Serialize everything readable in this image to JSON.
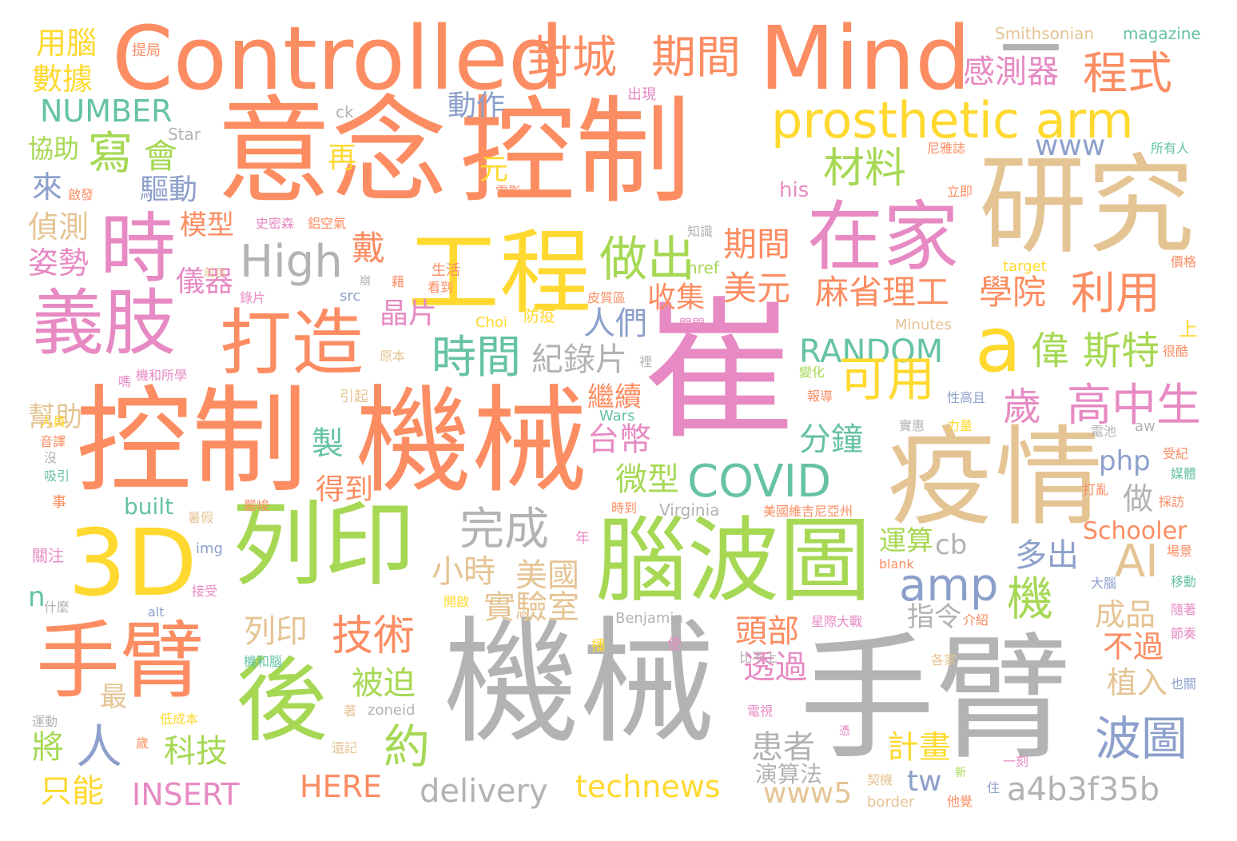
{
  "colors": {
    "orange": "#fc8d62",
    "gray": "#b3b3b3",
    "pink": "#e78ac3",
    "green": "#a6d854",
    "tan": "#e5c494",
    "teal": "#66c2a5",
    "blue": "#8da0cb",
    "yellow": "#ffd92f"
  },
  "words": [
    {
      "text": "機械",
      "color": "gray"
    },
    {
      "text": "手臂",
      "color": "gray"
    },
    {
      "text": "崔",
      "color": "pink"
    },
    {
      "text": "意念",
      "color": "orange"
    },
    {
      "text": "控制",
      "color": "orange"
    },
    {
      "text": "控制",
      "color": "orange"
    },
    {
      "text": "機械",
      "color": "orange"
    },
    {
      "text": "Controlled",
      "color": "orange"
    },
    {
      "text": "Mind",
      "color": "orange"
    },
    {
      "text": "研究",
      "color": "tan"
    },
    {
      "text": "疫情",
      "color": "tan"
    },
    {
      "text": "工程",
      "color": "yellow"
    },
    {
      "text": "3D",
      "color": "yellow"
    },
    {
      "text": "列印",
      "color": "green"
    },
    {
      "text": "腦波圖",
      "color": "green"
    },
    {
      "text": "手臂",
      "color": "orange"
    },
    {
      "text": "後",
      "color": "green"
    },
    {
      "text": "義肢",
      "color": "pink"
    },
    {
      "text": "打造",
      "color": "orange"
    },
    {
      "text": "時",
      "color": "pink"
    },
    {
      "text": "在家",
      "color": "pink"
    },
    {
      "text": "a",
      "color": "yellow"
    },
    {
      "text": "prosthetic arm",
      "color": "yellow"
    },
    {
      "text": "封城",
      "color": "orange"
    },
    {
      "text": "期間",
      "color": "orange"
    },
    {
      "text": "程式",
      "color": "orange"
    },
    {
      "text": "做出",
      "color": "green"
    },
    {
      "text": "High",
      "color": "gray"
    },
    {
      "text": "材料",
      "color": "green"
    },
    {
      "text": "時間",
      "color": "teal"
    },
    {
      "text": "COVID",
      "color": "teal"
    },
    {
      "text": "amp",
      "color": "blue"
    },
    {
      "text": "麻省理工",
      "color": "orange"
    },
    {
      "text": "學院",
      "color": "orange"
    },
    {
      "text": "利用",
      "color": "orange"
    },
    {
      "text": "高中生",
      "color": "pink"
    },
    {
      "text": "歲",
      "color": "pink"
    },
    {
      "text": "偉",
      "color": "green"
    },
    {
      "text": "斯特",
      "color": "green"
    },
    {
      "text": "技術",
      "color": "orange"
    },
    {
      "text": "完成",
      "color": "gray"
    },
    {
      "text": "約",
      "color": "green"
    },
    {
      "text": "人",
      "color": "blue"
    },
    {
      "text": "波圖",
      "color": "blue"
    },
    {
      "text": "AI",
      "color": "tan"
    },
    {
      "text": "機",
      "color": "green"
    },
    {
      "text": "RANDOM",
      "color": "teal"
    },
    {
      "text": "可用",
      "color": "yellow"
    },
    {
      "text": "美元",
      "color": "orange"
    },
    {
      "text": "期間",
      "color": "orange"
    },
    {
      "text": "感測器",
      "color": "pink"
    },
    {
      "text": "NUMBER",
      "color": "teal"
    },
    {
      "text": "寫",
      "color": "green"
    },
    {
      "text": "會",
      "color": "green"
    },
    {
      "text": "動作",
      "color": "blue"
    },
    {
      "text": "數據",
      "color": "yellow"
    },
    {
      "text": "用腦",
      "color": "yellow"
    },
    {
      "text": "www",
      "color": "blue"
    },
    {
      "text": "戴",
      "color": "orange"
    },
    {
      "text": "收集",
      "color": "orange"
    },
    {
      "text": "晶片",
      "color": "pink"
    },
    {
      "text": "人們",
      "color": "blue"
    },
    {
      "text": "紀錄片",
      "color": "gray"
    },
    {
      "text": "分鐘",
      "color": "teal"
    },
    {
      "text": "台幣",
      "color": "pink"
    },
    {
      "text": "微型",
      "color": "green"
    },
    {
      "text": "小時",
      "color": "tan"
    },
    {
      "text": "美國",
      "color": "tan"
    },
    {
      "text": "實驗室",
      "color": "tan"
    },
    {
      "text": "列印",
      "color": "tan"
    },
    {
      "text": "頭部",
      "color": "orange"
    },
    {
      "text": "透過",
      "color": "pink"
    },
    {
      "text": "被迫",
      "color": "green"
    },
    {
      "text": "科技",
      "color": "green"
    },
    {
      "text": "將",
      "color": "green"
    },
    {
      "text": "只能",
      "color": "yellow"
    },
    {
      "text": "INSERT",
      "color": "pink"
    },
    {
      "text": "HERE",
      "color": "orange"
    },
    {
      "text": "delivery",
      "color": "gray"
    },
    {
      "text": "technews",
      "color": "yellow"
    },
    {
      "text": "tw",
      "color": "blue"
    },
    {
      "text": "www5",
      "color": "tan"
    },
    {
      "text": "a4b3f35b",
      "color": "gray"
    },
    {
      "text": "患者",
      "color": "gray"
    },
    {
      "text": "演算法",
      "color": "gray"
    },
    {
      "text": "計畫",
      "color": "yellow"
    },
    {
      "text": "植入",
      "color": "tan"
    },
    {
      "text": "不過",
      "color": "orange"
    },
    {
      "text": "成品",
      "color": "tan"
    },
    {
      "text": "做",
      "color": "gray"
    },
    {
      "text": "多出",
      "color": "blue"
    },
    {
      "text": "運算",
      "color": "green"
    },
    {
      "text": "cb",
      "color": "gray"
    },
    {
      "text": "php",
      "color": "blue"
    },
    {
      "text": "Schooler",
      "color": "orange"
    },
    {
      "text": "指令",
      "color": "gray"
    },
    {
      "text": "繼續",
      "color": "orange"
    },
    {
      "text": "得到",
      "color": "orange"
    },
    {
      "text": "製",
      "color": "teal"
    },
    {
      "text": "元",
      "color": "yellow"
    },
    {
      "text": "再",
      "color": "yellow"
    },
    {
      "text": "儀器",
      "color": "pink"
    },
    {
      "text": "模型",
      "color": "orange"
    },
    {
      "text": "驅動",
      "color": "blue"
    },
    {
      "text": "偵測",
      "color": "tan"
    },
    {
      "text": "姿勢",
      "color": "pink"
    },
    {
      "text": "來",
      "color": "blue"
    },
    {
      "text": "協助",
      "color": "green"
    },
    {
      "text": "幫助",
      "color": "tan"
    },
    {
      "text": "最",
      "color": "tan"
    },
    {
      "text": "built",
      "color": "teal"
    },
    {
      "text": "n",
      "color": "teal"
    },
    {
      "text": "his",
      "color": "pink"
    },
    {
      "text": "Smithsonian",
      "color": "tan"
    },
    {
      "text": "magazine",
      "color": "teal"
    },
    {
      "text": "ck",
      "color": "gray"
    },
    {
      "text": "Star",
      "color": "gray"
    },
    {
      "text": "出現",
      "color": "pink"
    },
    {
      "text": "提局",
      "color": "orange"
    },
    {
      "text": "尼雅誌",
      "color": "orange"
    },
    {
      "text": "所有人",
      "color": "teal"
    },
    {
      "text": "立即",
      "color": "orange"
    },
    {
      "text": "target",
      "color": "yellow"
    },
    {
      "text": "價格",
      "color": "orange"
    },
    {
      "text": "Minutes",
      "color": "tan"
    },
    {
      "text": "上",
      "color": "yellow"
    },
    {
      "text": "很酷",
      "color": "orange"
    },
    {
      "text": "href",
      "color": "green"
    },
    {
      "text": "知識",
      "color": "gray"
    },
    {
      "text": "Choi",
      "color": "yellow"
    },
    {
      "text": "防疫",
      "color": "yellow"
    },
    {
      "text": "關閉",
      "color": "pink"
    },
    {
      "text": "皮質區",
      "color": "orange"
    },
    {
      "text": "看到",
      "color": "orange"
    },
    {
      "text": "生活",
      "color": "orange"
    },
    {
      "text": "src",
      "color": "blue"
    },
    {
      "text": "錄片",
      "color": "pink"
    },
    {
      "text": "史密森",
      "color": "pink"
    },
    {
      "text": "鋁空氣",
      "color": "orange"
    },
    {
      "text": "前目",
      "color": "tan"
    },
    {
      "text": "原本",
      "color": "tan"
    },
    {
      "text": "機和所學",
      "color": "pink"
    },
    {
      "text": "裡",
      "color": "gray"
    },
    {
      "text": "變化",
      "color": "green"
    },
    {
      "text": "報導",
      "color": "orange"
    },
    {
      "text": "性高且",
      "color": "blue"
    },
    {
      "text": "Wars",
      "color": "teal"
    },
    {
      "text": "引起",
      "color": "tan"
    },
    {
      "text": "實惠",
      "color": "gray"
    },
    {
      "text": "力量",
      "color": "yellow"
    },
    {
      "text": "電池",
      "color": "gray"
    },
    {
      "text": "aw",
      "color": "gray"
    },
    {
      "text": "受紀",
      "color": "orange"
    },
    {
      "text": "媒體",
      "color": "teal"
    },
    {
      "text": "打亂",
      "color": "orange"
    },
    {
      "text": "採訪",
      "color": "orange"
    },
    {
      "text": "Virginia",
      "color": "gray"
    },
    {
      "text": "時到",
      "color": "orange"
    },
    {
      "text": "美國維吉尼亞州",
      "color": "orange"
    },
    {
      "text": "嚴峻",
      "color": "orange"
    },
    {
      "text": "暑假",
      "color": "tan"
    },
    {
      "text": "img",
      "color": "blue"
    },
    {
      "text": "年",
      "color": "pink"
    },
    {
      "text": "blank",
      "color": "orange"
    },
    {
      "text": "開啟",
      "color": "yellow"
    },
    {
      "text": "大腦",
      "color": "blue"
    },
    {
      "text": "移動",
      "color": "teal"
    },
    {
      "text": "場景",
      "color": "orange"
    },
    {
      "text": "隨著",
      "color": "pink"
    },
    {
      "text": "節奏",
      "color": "pink"
    },
    {
      "text": "alt",
      "color": "blue"
    },
    {
      "text": "Benjamin",
      "color": "gray"
    },
    {
      "text": "星際大戰",
      "color": "pink"
    },
    {
      "text": "介紹",
      "color": "orange"
    },
    {
      "text": "接受",
      "color": "pink"
    },
    {
      "text": "什麼",
      "color": "gray"
    },
    {
      "text": "關注",
      "color": "pink"
    },
    {
      "text": "事",
      "color": "orange"
    },
    {
      "text": "吸引",
      "color": "teal"
    },
    {
      "text": "音譯",
      "color": "orange"
    },
    {
      "text": "人員",
      "color": "yellow"
    },
    {
      "text": "嗎",
      "color": "pink"
    },
    {
      "text": "播",
      "color": "yellow"
    },
    {
      "text": "使",
      "color": "pink"
    },
    {
      "text": "比不上",
      "color": "gray"
    },
    {
      "text": "機和腦",
      "color": "teal"
    },
    {
      "text": "各家",
      "color": "tan"
    },
    {
      "text": "也關",
      "color": "blue"
    },
    {
      "text": "運動",
      "color": "gray"
    },
    {
      "text": "低成本",
      "color": "yellow"
    },
    {
      "text": "電視",
      "color": "pink"
    },
    {
      "text": "zoneid",
      "color": "gray"
    },
    {
      "text": "著",
      "color": "tan"
    },
    {
      "text": "歲",
      "color": "orange"
    },
    {
      "text": "還記",
      "color": "tan"
    },
    {
      "text": "憑",
      "color": "pink"
    },
    {
      "text": "border",
      "color": "tan"
    },
    {
      "text": "他覺",
      "color": "orange"
    },
    {
      "text": "新",
      "color": "green"
    },
    {
      "text": "住",
      "color": "blue"
    },
    {
      "text": "一刻",
      "color": "pink"
    },
    {
      "text": "契機",
      "color": "tan"
    },
    {
      "text": "電影",
      "color": "orange"
    },
    {
      "text": "啟發",
      "color": "orange"
    },
    {
      "text": "藉",
      "color": "orange"
    },
    {
      "text": "崩",
      "color": "gray"
    },
    {
      "text": "沒",
      "color": "gray"
    }
  ]
}
